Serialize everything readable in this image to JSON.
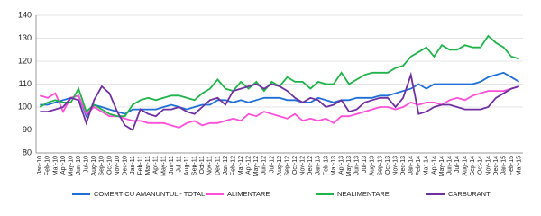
{
  "chart_data": {
    "type": "line",
    "categories": [
      "Jan-10",
      "Feb-10",
      "Mar-10",
      "Apr-10",
      "May-10",
      "Jun-10",
      "Jul-10",
      "Aug-10",
      "Sep-10",
      "Oct-10",
      "Nov-10",
      "Dec-10",
      "Jan-11",
      "Feb-11",
      "Mar-11",
      "Apr-11",
      "May-11",
      "Jun-11",
      "Jul-11",
      "Aug-11",
      "Sep-11",
      "Oct-11",
      "Nov-11",
      "Dec-11",
      "Jan-12",
      "Feb-12",
      "Mar-12",
      "Apr-12",
      "May-12",
      "Jun-12",
      "Jul-12",
      "Aug-12",
      "Sep-12",
      "Oct-12",
      "Nov-12",
      "Dec-12",
      "Jan-13",
      "Feb-13",
      "Mar-13",
      "Apr-13",
      "May-13",
      "Jun-13",
      "Jul-13",
      "Aug-13",
      "Sep-13",
      "Oct-13",
      "Nov-13",
      "Dec-13",
      "Jan-14",
      "Feb-14",
      "Mar-14",
      "Apr-14",
      "May-14",
      "Jun-14",
      "Jul-14",
      "Aug-14",
      "Sep-14",
      "Oct-14",
      "Nov-14",
      "Dec-14",
      "Jan-15",
      "Feb-15",
      "Mar-15"
    ],
    "series": [
      {
        "name": "COMERT CU AMANUNTUL - TOTAL",
        "color": "#1f6fd6",
        "values": [
          101,
          101,
          102,
          103,
          104,
          105,
          96,
          101,
          100,
          99,
          98,
          97,
          99,
          99,
          99,
          99,
          100,
          101,
          100,
          99,
          100,
          101,
          101,
          103,
          103,
          102,
          103,
          102,
          103,
          104,
          104,
          104,
          103,
          103,
          102,
          102,
          104,
          103,
          102,
          103,
          103,
          104,
          104,
          104,
          105,
          105,
          106,
          107,
          108,
          110,
          108,
          110,
          110,
          110,
          110,
          110,
          110,
          111,
          113,
          114,
          115,
          113,
          111
        ]
      },
      {
        "name": "ALIMENTARE",
        "color": "#ff4fd8",
        "values": [
          105,
          104,
          106,
          98,
          104,
          105,
          97,
          100,
          98,
          96,
          96,
          95,
          94,
          94,
          93,
          93,
          93,
          92,
          91,
          93,
          94,
          92,
          93,
          93,
          94,
          95,
          94,
          97,
          96,
          98,
          97,
          96,
          95,
          97,
          94,
          95,
          94,
          95,
          93,
          96,
          96,
          97,
          98,
          99,
          100,
          100,
          99,
          100,
          102,
          101,
          102,
          102,
          101,
          103,
          104,
          103,
          105,
          106,
          107,
          107,
          107,
          108,
          109
        ]
      },
      {
        "name": "NEALIMENTARE",
        "color": "#1fb34a",
        "values": [
          100,
          102,
          103,
          102,
          102,
          108,
          98,
          101,
          99,
          97,
          96,
          96,
          101,
          103,
          104,
          103,
          104,
          105,
          105,
          104,
          103,
          106,
          108,
          112,
          108,
          107,
          111,
          108,
          111,
          107,
          111,
          109,
          113,
          111,
          111,
          108,
          111,
          110,
          110,
          115,
          110,
          112,
          114,
          115,
          115,
          115,
          117,
          118,
          122,
          124,
          126,
          122,
          127,
          125,
          125,
          127,
          126,
          126,
          131,
          128,
          126,
          122,
          121
        ]
      },
      {
        "name": "CARBURANTI",
        "color": "#7030a0",
        "values": [
          98,
          98,
          99,
          100,
          104,
          103,
          93,
          103,
          109,
          106,
          98,
          92,
          90,
          99,
          97,
          96,
          99,
          99,
          100,
          98,
          97,
          100,
          103,
          104,
          101,
          107,
          108,
          109,
          110,
          108,
          110,
          109,
          107,
          104,
          102,
          104,
          103,
          100,
          101,
          103,
          98,
          99,
          102,
          103,
          104,
          104,
          100,
          104,
          114,
          97,
          98,
          100,
          101,
          101,
          100,
          99,
          99,
          99,
          100,
          104,
          106,
          108,
          109
        ]
      }
    ],
    "ylim": [
      80,
      140
    ],
    "yticks": [
      80,
      90,
      100,
      110,
      120,
      130,
      140
    ],
    "grid": true
  }
}
